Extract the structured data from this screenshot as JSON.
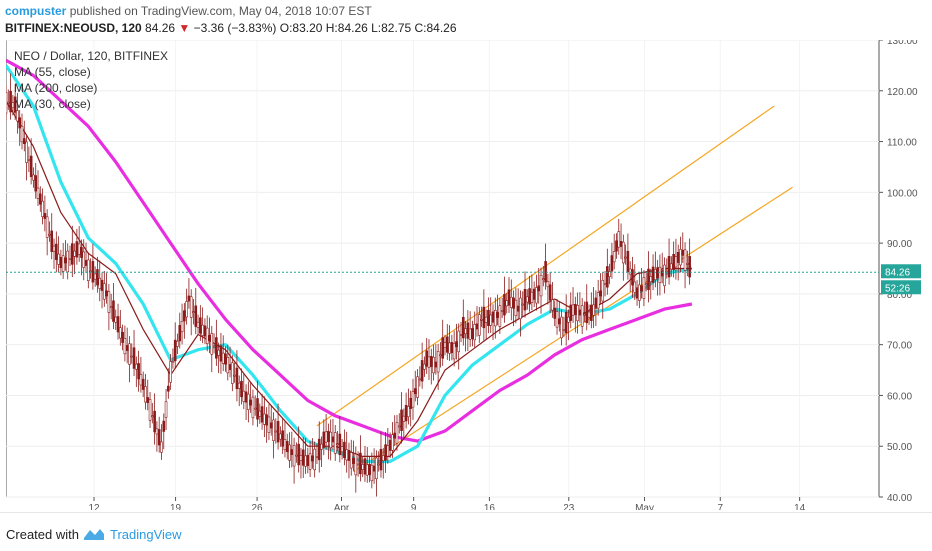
{
  "header": {
    "user": "compuster",
    "published_text": "published on TradingView.com, May 04, 2018 10:07 EST",
    "symbol": "BITFINEX:NEOUSD, 120",
    "last": "84.26",
    "change_icon": "triangle-down",
    "change": "−3.36 (−3.83%)",
    "ohlc": "O:83.20 H:84.26 L:82.75 C:84.26"
  },
  "legend": {
    "title": "NEO / Dollar, 120, BITFINEX",
    "items": [
      "MA (55, close)",
      "MA (200, close)",
      "MA (30, close)"
    ]
  },
  "footer": {
    "created_with": "Created with",
    "brand": "TradingView"
  },
  "colors": {
    "ma55": "#33e5ee",
    "ma200": "#e82ee0",
    "ma30": "#8b1a1a",
    "channel": "#f5a623",
    "candles": "#8b1a1a",
    "price_label_bg": "#26a69a"
  },
  "chart_data": {
    "type": "candlestick",
    "x_ticks": [
      "12",
      "19",
      "26",
      "Apr",
      "9",
      "16",
      "23",
      "May",
      "7",
      "14"
    ],
    "y_ticks": [
      "130.00",
      "120.00",
      "110.00",
      "100.00",
      "90.00",
      "80.00",
      "70.00",
      "60.00",
      "50.00",
      "40.00"
    ],
    "ylim": [
      40,
      130
    ],
    "last_price_label": "84.26",
    "timer_label": "52:26",
    "last_price": 84.26,
    "price_path": [
      [
        0,
        118
      ],
      [
        1,
        117
      ],
      [
        2,
        110
      ],
      [
        3,
        103
      ],
      [
        4,
        97
      ],
      [
        5,
        90
      ],
      [
        6,
        86
      ],
      [
        7,
        87
      ],
      [
        8,
        89
      ],
      [
        9,
        85
      ],
      [
        10,
        83
      ],
      [
        11,
        80
      ],
      [
        12,
        75
      ],
      [
        13,
        70
      ],
      [
        14,
        67
      ],
      [
        15,
        62
      ],
      [
        16,
        56
      ],
      [
        17,
        50
      ],
      [
        18,
        65
      ],
      [
        19,
        72
      ],
      [
        20,
        79
      ],
      [
        21,
        74
      ],
      [
        22,
        72
      ],
      [
        23,
        69
      ],
      [
        24,
        67
      ],
      [
        25,
        64
      ],
      [
        26,
        60
      ],
      [
        27,
        58
      ],
      [
        28,
        56
      ],
      [
        29,
        54
      ],
      [
        30,
        52
      ],
      [
        31,
        49
      ],
      [
        32,
        48
      ],
      [
        33,
        47
      ],
      [
        34,
        48
      ],
      [
        35,
        52
      ],
      [
        36,
        51
      ],
      [
        37,
        49
      ],
      [
        38,
        47
      ],
      [
        39,
        46
      ],
      [
        40,
        45
      ],
      [
        41,
        47
      ],
      [
        42,
        50
      ],
      [
        43,
        54
      ],
      [
        44,
        57
      ],
      [
        45,
        62
      ],
      [
        46,
        67
      ],
      [
        47,
        66
      ],
      [
        48,
        70
      ],
      [
        49,
        69
      ],
      [
        50,
        73
      ],
      [
        51,
        72
      ],
      [
        52,
        75
      ],
      [
        53,
        75
      ],
      [
        54,
        76
      ],
      [
        55,
        79
      ],
      [
        56,
        77
      ],
      [
        57,
        79
      ],
      [
        58,
        80
      ],
      [
        59,
        84
      ],
      [
        60,
        76
      ],
      [
        61,
        73
      ],
      [
        62,
        77
      ],
      [
        63,
        76
      ],
      [
        64,
        76
      ],
      [
        65,
        80
      ],
      [
        66,
        84
      ],
      [
        67,
        91
      ],
      [
        68,
        86
      ],
      [
        69,
        80
      ],
      [
        70,
        82
      ],
      [
        71,
        84
      ],
      [
        72,
        84
      ],
      [
        73,
        86
      ],
      [
        74,
        88
      ],
      [
        75,
        84
      ]
    ],
    "ma30": [
      [
        0,
        118
      ],
      [
        3,
        109
      ],
      [
        6,
        96
      ],
      [
        9,
        88
      ],
      [
        12,
        84
      ],
      [
        15,
        73
      ],
      [
        18,
        64
      ],
      [
        21,
        72
      ],
      [
        24,
        69
      ],
      [
        27,
        62
      ],
      [
        30,
        56
      ],
      [
        33,
        50
      ],
      [
        36,
        50
      ],
      [
        39,
        48
      ],
      [
        42,
        48
      ],
      [
        45,
        55
      ],
      [
        48,
        65
      ],
      [
        51,
        69
      ],
      [
        54,
        73
      ],
      [
        57,
        76
      ],
      [
        60,
        79
      ],
      [
        63,
        76
      ],
      [
        66,
        79
      ],
      [
        69,
        84
      ],
      [
        72,
        85
      ],
      [
        75,
        85
      ]
    ],
    "ma55": [
      [
        0,
        125
      ],
      [
        3,
        117
      ],
      [
        6,
        102
      ],
      [
        9,
        91
      ],
      [
        12,
        86
      ],
      [
        15,
        78
      ],
      [
        18,
        67
      ],
      [
        21,
        69
      ],
      [
        24,
        70
      ],
      [
        27,
        64
      ],
      [
        30,
        57
      ],
      [
        33,
        51
      ],
      [
        36,
        49
      ],
      [
        39,
        47
      ],
      [
        42,
        47
      ],
      [
        45,
        50
      ],
      [
        48,
        60
      ],
      [
        51,
        66
      ],
      [
        54,
        70
      ],
      [
        57,
        74
      ],
      [
        60,
        77
      ],
      [
        63,
        76
      ],
      [
        66,
        77
      ],
      [
        69,
        80
      ],
      [
        72,
        84
      ],
      [
        75,
        85
      ]
    ],
    "ma200": [
      [
        0,
        126
      ],
      [
        3,
        123
      ],
      [
        6,
        118
      ],
      [
        9,
        113
      ],
      [
        12,
        106
      ],
      [
        15,
        98
      ],
      [
        18,
        90
      ],
      [
        21,
        82
      ],
      [
        24,
        75
      ],
      [
        27,
        69
      ],
      [
        30,
        64
      ],
      [
        33,
        59
      ],
      [
        36,
        56
      ],
      [
        39,
        54
      ],
      [
        42,
        52
      ],
      [
        45,
        51
      ],
      [
        48,
        53
      ],
      [
        51,
        57
      ],
      [
        54,
        61
      ],
      [
        57,
        64
      ],
      [
        60,
        68
      ],
      [
        63,
        71
      ],
      [
        66,
        73
      ],
      [
        69,
        75
      ],
      [
        72,
        77
      ],
      [
        75,
        78
      ]
    ],
    "channel_upper": [
      [
        34,
        54
      ],
      [
        84,
        117
      ]
    ],
    "channel_lower": [
      [
        38,
        45
      ],
      [
        86,
        101
      ]
    ]
  }
}
